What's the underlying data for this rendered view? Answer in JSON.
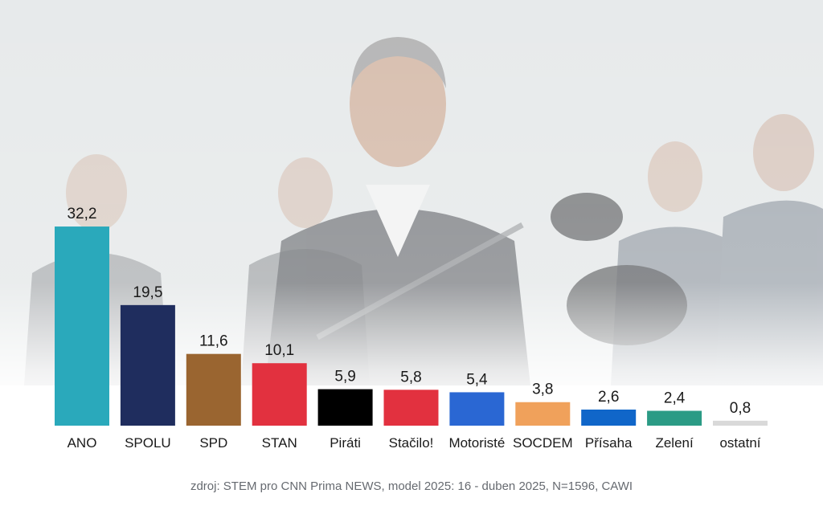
{
  "chart_data": {
    "type": "bar",
    "categories": [
      "ANO",
      "SPOLU",
      "SPD",
      "STAN",
      "Piráti",
      "Stačilo!",
      "Motoristé",
      "SOCDEM",
      "Přísaha",
      "Zelení",
      "ostatní"
    ],
    "values": [
      32.2,
      19.5,
      11.6,
      10.1,
      5.9,
      5.8,
      5.4,
      3.8,
      2.6,
      2.4,
      0.8
    ],
    "value_labels": [
      "32,2",
      "19,5",
      "11,6",
      "10,1",
      "5,9",
      "5,8",
      "5,4",
      "3,8",
      "2,6",
      "2,4",
      "0,8"
    ],
    "colors": [
      "#2aa9bb",
      "#1f2d5e",
      "#9a6530",
      "#e2313f",
      "#000000",
      "#e2313f",
      "#2a67d3",
      "#f0a15b",
      "#1066c9",
      "#2b9b85",
      "#d9d9d9"
    ],
    "title": "",
    "xlabel": "",
    "ylabel": "",
    "grid": false,
    "legend": "none"
  },
  "source_text": "zdroj: STEM pro CNN Prima NEWS, model 2025: 16 - duben 2025, N=1596, CAWI"
}
